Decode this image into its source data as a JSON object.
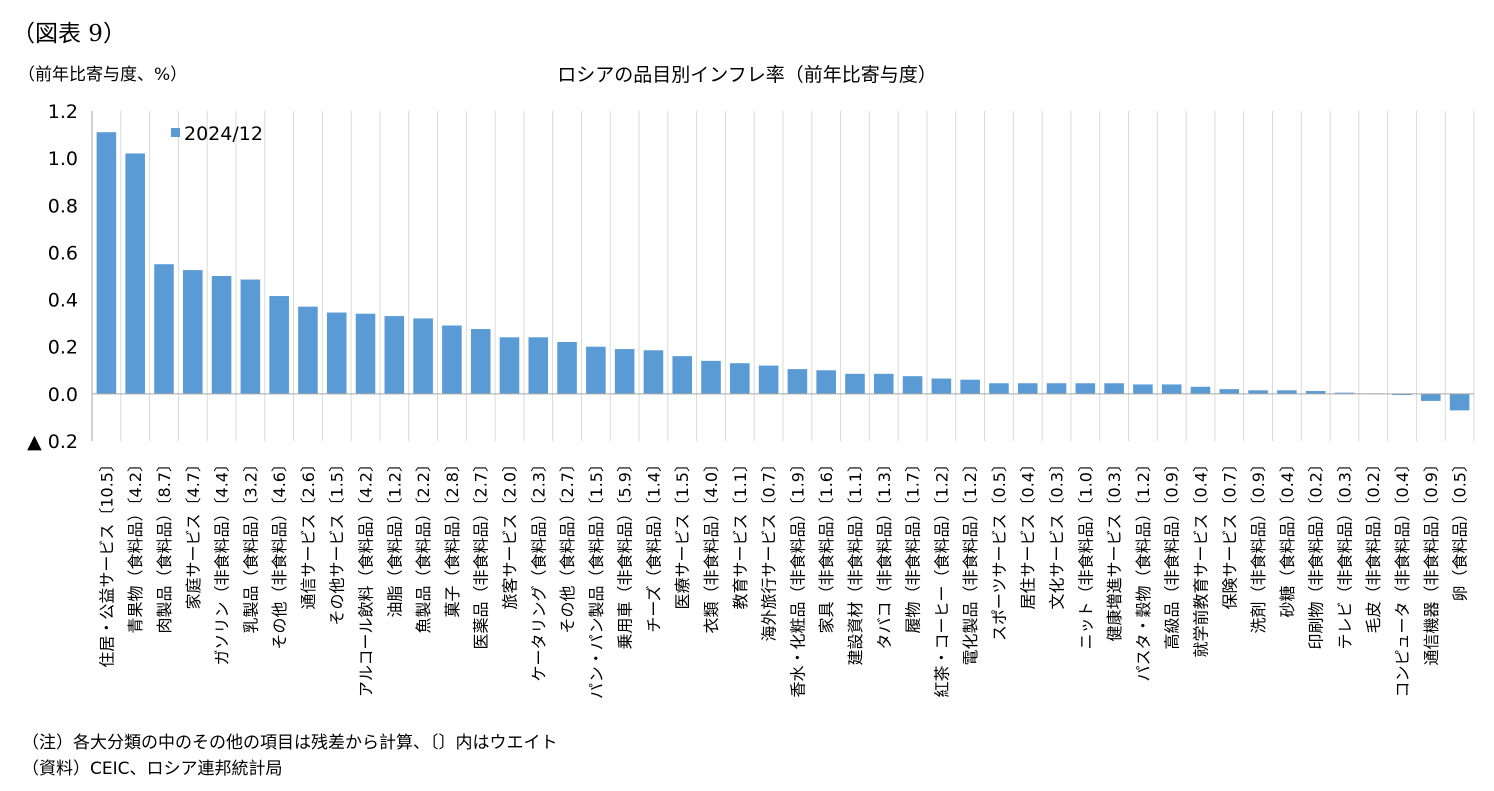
{
  "figure_label": "（図表 9）",
  "unit_label": "（前年比寄与度、%）",
  "notes": [
    "（注）各大分類の中のその他の項目は残差から計算、〔〕内はウエイト",
    "（資料）CEIC、ロシア連邦統計局"
  ],
  "colors": {
    "bar": "#5b9bd5",
    "grid": "#d9d9d9",
    "axis": "#a6a6a6"
  },
  "chart_data": {
    "type": "bar",
    "title": "ロシアの品目別インフレ率（前年比寄与度）",
    "xlabel": "",
    "ylabel": "",
    "ylim": [
      -0.2,
      1.2
    ],
    "yticks": [
      1.2,
      1.0,
      0.8,
      0.6,
      0.4,
      0.2,
      0.0,
      -0.2
    ],
    "ytick_labels": [
      "1.2",
      "1.0",
      "0.8",
      "0.6",
      "0.4",
      "0.2",
      "0.0",
      "▲ 0.2"
    ],
    "grid": "vertical",
    "legend": "top-left",
    "series": [
      {
        "name": "2024/12",
        "values": [
          1.11,
          1.02,
          0.55,
          0.525,
          0.5,
          0.485,
          0.415,
          0.37,
          0.345,
          0.34,
          0.33,
          0.32,
          0.29,
          0.275,
          0.24,
          0.24,
          0.22,
          0.2,
          0.19,
          0.185,
          0.16,
          0.14,
          0.13,
          0.12,
          0.105,
          0.1,
          0.085,
          0.085,
          0.075,
          0.065,
          0.06,
          0.045,
          0.045,
          0.045,
          0.045,
          0.045,
          0.04,
          0.04,
          0.03,
          0.02,
          0.015,
          0.015,
          0.012,
          0.005,
          0.002,
          -0.005,
          -0.03,
          -0.07
        ]
      }
    ],
    "categories": [
      "住居・公益サービス〔10.5〕",
      "青果物（食料品）〔4.2〕",
      "肉製品（食料品）〔8.7〕",
      "家庭サービス〔4.7〕",
      "ガソリン（非食料品）〔4.4〕",
      "乳製品（食料品）〔3.2〕",
      "その他（非食料品）〔4.6〕",
      "通信サービス〔2.6〕",
      "その他サービス〔1.5〕",
      "アルコール飲料（食料品）〔4.2〕",
      "油脂（食料品）〔1.2〕",
      "魚製品（食料品）〔2.2〕",
      "菓子（食料品）〔2.8〕",
      "医薬品（非食料品）〔2.7〕",
      "旅客サービス〔2.0〕",
      "ケータリング（食料品）〔2.3〕",
      "その他（食料品）〔2.7〕",
      "パン・パン製品（食料品）〔1.5〕",
      "乗用車（非食料品）〔5.9〕",
      "チーズ（食料品）〔1.4〕",
      "医療サービス〔1.5〕",
      "衣類（非食料品）〔4.0〕",
      "教育サービス〔1.1〕",
      "海外旅行サービス〔0.7〕",
      "香水・化粧品（非食料品）〔1.9〕",
      "家具（非食料品）〔1.6〕",
      "建設資材（非食料品）〔1.1〕",
      "タバコ（非食料品）〔1.3〕",
      "履物（非食料品）〔1.7〕",
      "紅茶・コーヒー（食料品）〔1.2〕",
      "電化製品（非食料品）〔1.2〕",
      "スポーツサービス〔0.5〕",
      "居住サービス〔0.4〕",
      "文化サービス〔0.3〕",
      "ニット（非食料品）〔1.0〕",
      "健康増進サービス〔0.3〕",
      "パスタ・穀物（食料品）〔1.2〕",
      "高級品（非食料品）〔0.9〕",
      "就学前教育サービス〔0.4〕",
      "保険サービス〔0.7〕",
      "洗剤（非食料品）〔0.9〕",
      "砂糖（食料品）〔0.4〕",
      "印刷物（非食料品）〔0.2〕",
      "テレビ（非食料品）〔0.3〕",
      "毛皮（非食料品）〔0.2〕",
      "コンピュータ（非食料品）〔0.4〕",
      "通信機器（非食料品）〔0.9〕",
      "卵（食料品）〔0.5〕"
    ]
  }
}
